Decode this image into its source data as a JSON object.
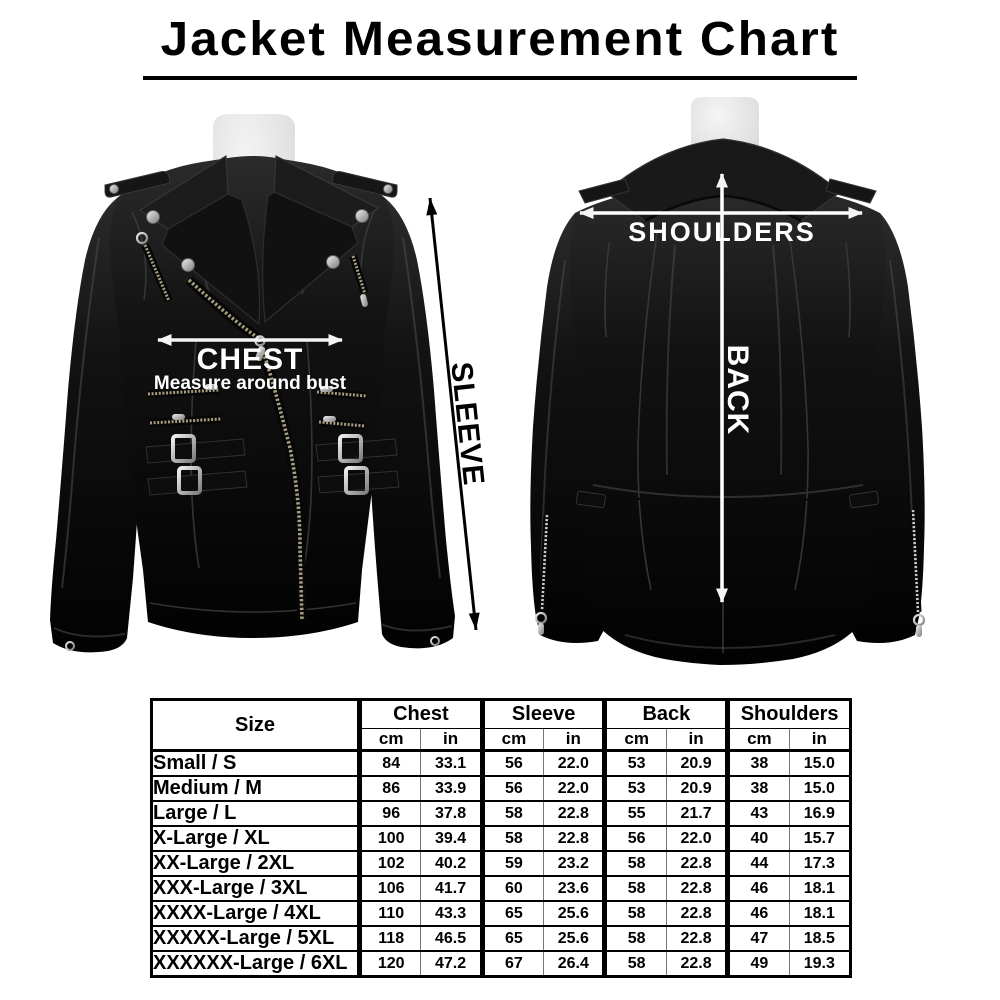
{
  "title": "Jacket Measurement Chart",
  "figure": {
    "front": {
      "chest_label": "CHEST",
      "chest_note": "Measure around bust",
      "sleeve_label": "SLEEVE"
    },
    "back": {
      "shoulders_label": "SHOULDERS",
      "back_label": "BACK"
    }
  },
  "table": {
    "size_header": "Size",
    "groups": [
      "Chest",
      "Sleeve",
      "Back",
      "Shoulders"
    ],
    "units": [
      "cm",
      "in"
    ],
    "rows": [
      [
        "Small / S",
        "84",
        "33.1",
        "56",
        "22.0",
        "53",
        "20.9",
        "38",
        "15.0"
      ],
      [
        "Medium / M",
        "86",
        "33.9",
        "56",
        "22.0",
        "53",
        "20.9",
        "38",
        "15.0"
      ],
      [
        "Large / L",
        "96",
        "37.8",
        "58",
        "22.8",
        "55",
        "21.7",
        "43",
        "16.9"
      ],
      [
        "X-Large / XL",
        "100",
        "39.4",
        "58",
        "22.8",
        "56",
        "22.0",
        "40",
        "15.7"
      ],
      [
        "XX-Large / 2XL",
        "102",
        "40.2",
        "59",
        "23.2",
        "58",
        "22.8",
        "44",
        "17.3"
      ],
      [
        "XXX-Large / 3XL",
        "106",
        "41.7",
        "60",
        "23.6",
        "58",
        "22.8",
        "46",
        "18.1"
      ],
      [
        "XXXX-Large / 4XL",
        "110",
        "43.3",
        "65",
        "25.6",
        "58",
        "22.8",
        "46",
        "18.1"
      ],
      [
        "XXXXX-Large / 5XL",
        "118",
        "46.5",
        "65",
        "25.6",
        "58",
        "22.8",
        "47",
        "18.5"
      ],
      [
        "XXXXXX-Large / 6XL",
        "120",
        "47.2",
        "67",
        "26.4",
        "58",
        "22.8",
        "49",
        "19.3"
      ]
    ]
  },
  "colors": {
    "background": "#ffffff",
    "text": "#000000",
    "jacket_leather": "#0d0d0d",
    "mannequin": "#dedede",
    "hardware_silver": "#b5b5b5",
    "zipper_brass": "#a79d7f",
    "annotation_on_jacket": "#ffffff",
    "annotation_on_white": "#000000",
    "table_border": "#000000"
  }
}
